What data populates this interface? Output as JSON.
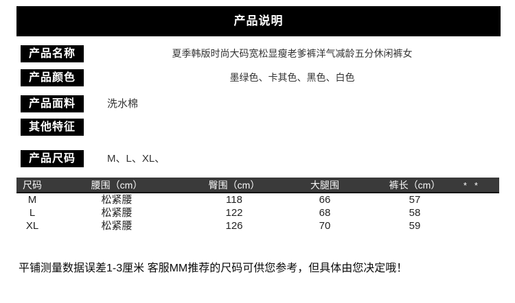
{
  "page": {
    "title": "产品说明"
  },
  "fields": [
    {
      "label": "产品名称",
      "value": "夏季韩版时尚大码宽松显瘦老爹裤洋气减龄五分休闲裤女",
      "align": "center"
    },
    {
      "label": "产品颜色",
      "value": "墨绿色、卡其色、黑色、白色",
      "align": "center"
    },
    {
      "label": "产品面料",
      "value": "洗水棉",
      "align": "left"
    },
    {
      "label": "其他特征",
      "value": "",
      "align": "left"
    },
    {
      "label": "产品尺码",
      "value": "M、L、XL、",
      "align": "left"
    }
  ],
  "size_table": {
    "columns": [
      "尺码",
      "腰围（cm）",
      "臀围（cm）",
      "大腿围",
      "裤长（cm）"
    ],
    "header_marks": "**",
    "rows": [
      {
        "size": "M",
        "waist": "松紧腰",
        "hip": "118",
        "thigh": "66",
        "length": "57"
      },
      {
        "size": "L",
        "waist": "松紧腰",
        "hip": "122",
        "thigh": "68",
        "length": "58"
      },
      {
        "size": "XL",
        "waist": "松紧腰",
        "hip": "126",
        "thigh": "70",
        "length": "59"
      }
    ]
  },
  "footnote": "平铺测量数据误差1-3厘米 客服MM推荐的尺码可供您参考，但具体由您决定哦！",
  "colors": {
    "banner_bg": "#000000",
    "badge_bg": "#000000",
    "table_header_bg": "#3a3a3a",
    "body_text": "#333333"
  }
}
